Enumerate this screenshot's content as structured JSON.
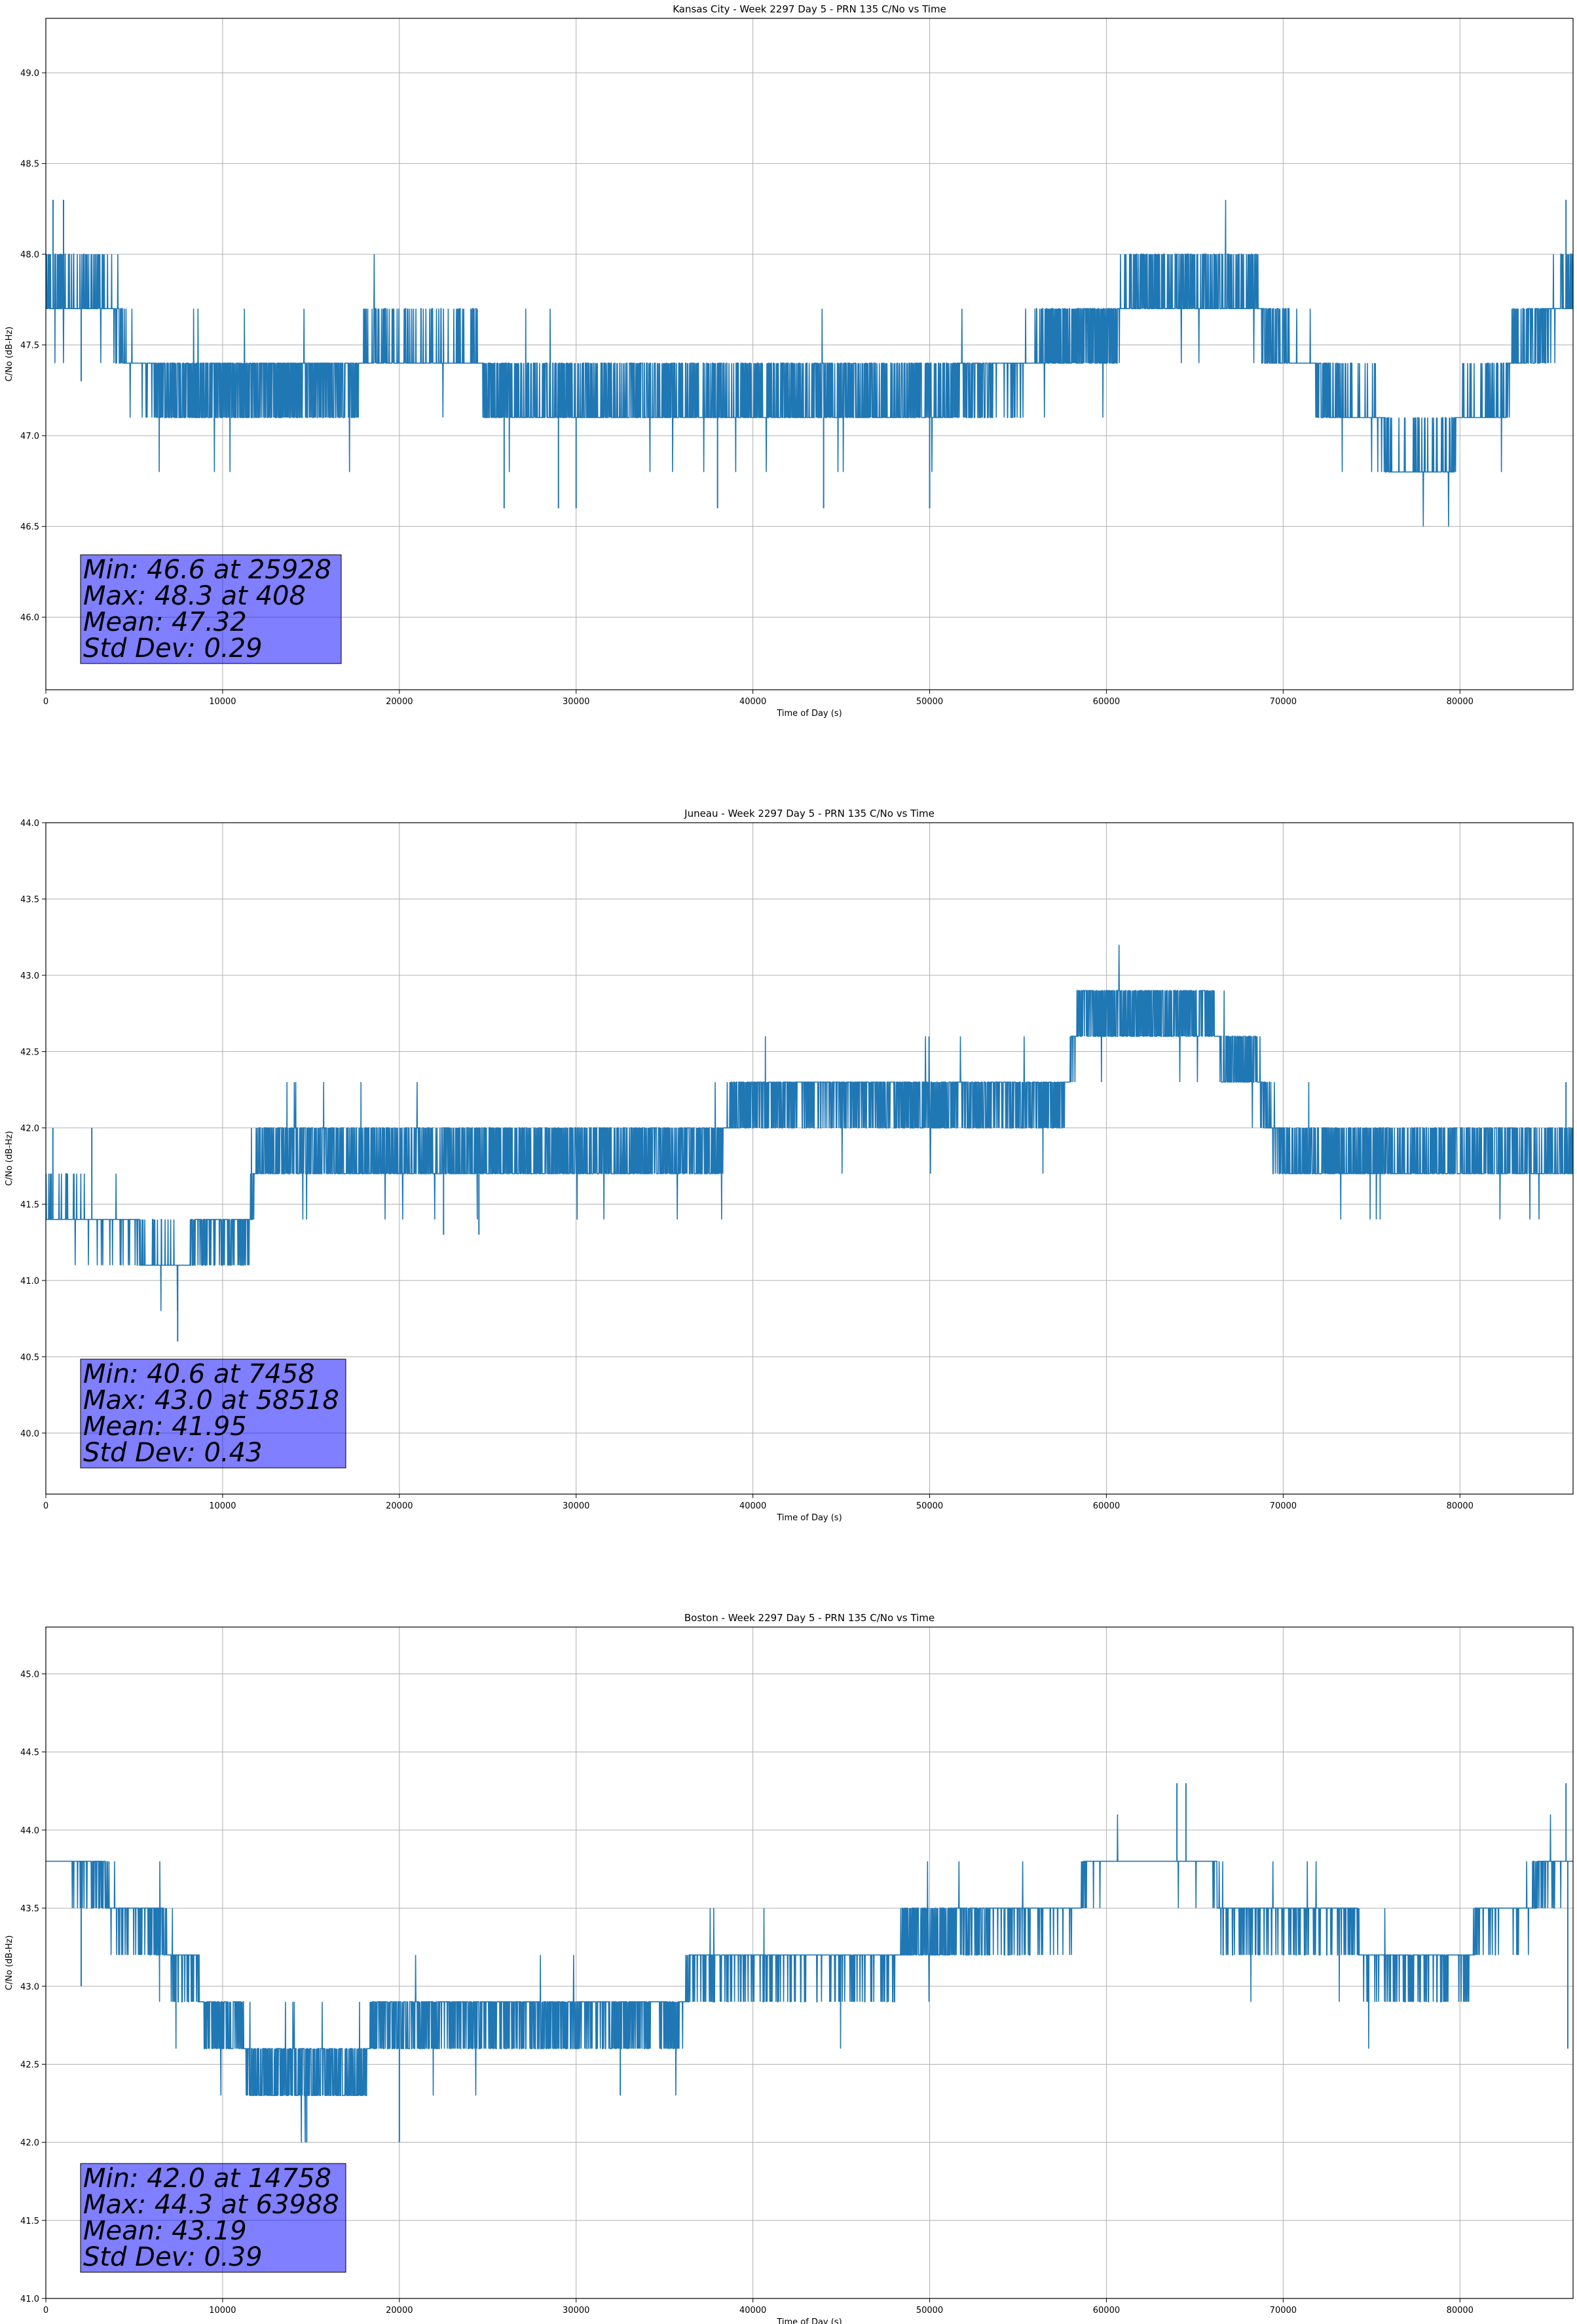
{
  "chart_data": [
    {
      "type": "line",
      "title": "Kansas City - Week 2297 Day 5 - PRN 135 C/No vs Time",
      "xlabel": "Time of Day (s)",
      "ylabel": "C/No (dB-Hz)",
      "xlim": [
        0,
        86400
      ],
      "ylim": [
        45.6,
        49.3
      ],
      "xticks": [
        0,
        10000,
        20000,
        30000,
        40000,
        50000,
        60000,
        70000,
        80000
      ],
      "yticks": [
        46.0,
        46.5,
        47.0,
        47.5,
        48.0,
        48.5,
        49.0
      ],
      "grid": true,
      "color": "#1f77b4",
      "quantum": 0.3,
      "trend": [
        [
          0,
          47.8
        ],
        [
          3500,
          47.75
        ],
        [
          4500,
          47.45
        ],
        [
          6500,
          47.25
        ],
        [
          17500,
          47.3
        ],
        [
          18000,
          47.45
        ],
        [
          24500,
          47.45
        ],
        [
          25000,
          47.2
        ],
        [
          50000,
          47.2
        ],
        [
          55000,
          47.35
        ],
        [
          56500,
          47.5
        ],
        [
          60500,
          47.55
        ],
        [
          61000,
          47.8
        ],
        [
          68500,
          47.8
        ],
        [
          69000,
          47.5
        ],
        [
          71500,
          47.4
        ],
        [
          72500,
          47.2
        ],
        [
          75500,
          47.1
        ],
        [
          76000,
          46.82
        ],
        [
          79500,
          46.85
        ],
        [
          80000,
          47.15
        ],
        [
          82500,
          47.15
        ],
        [
          83000,
          47.45
        ],
        [
          84500,
          47.6
        ],
        [
          86400,
          47.8
        ]
      ],
      "spikes": [
        [
          408,
          48.3
        ],
        [
          1000,
          48.3
        ],
        [
          2000,
          47.3
        ],
        [
          25928,
          46.6
        ],
        [
          29000,
          46.6
        ],
        [
          30000,
          46.6
        ],
        [
          38000,
          46.6
        ],
        [
          44000,
          46.6
        ],
        [
          50000,
          46.6
        ],
        [
          86000,
          48.3
        ]
      ],
      "stats": [
        "Min: 46.6 at 25928",
        "Max: 48.3 at 408",
        "Mean: 47.32",
        "Std Dev: 0.29"
      ]
    },
    {
      "type": "line",
      "title": "Juneau - Week 2297 Day 5 - PRN 135 C/No vs Time",
      "xlabel": "Time of Day (s)",
      "ylabel": "C/No (dB-Hz)",
      "xlim": [
        0,
        86400
      ],
      "ylim": [
        39.6,
        44.0
      ],
      "xticks": [
        0,
        10000,
        20000,
        30000,
        40000,
        50000,
        60000,
        70000,
        80000
      ],
      "yticks": [
        40.0,
        40.5,
        41.0,
        41.5,
        42.0,
        42.5,
        43.0,
        43.5,
        44.0
      ],
      "grid": true,
      "color": "#1f77b4",
      "quantum": 0.3,
      "trend": [
        [
          0,
          41.45
        ],
        [
          5000,
          41.35
        ],
        [
          5500,
          41.15
        ],
        [
          8000,
          41.1
        ],
        [
          8500,
          41.3
        ],
        [
          11500,
          41.35
        ],
        [
          12000,
          41.85
        ],
        [
          30000,
          41.8
        ],
        [
          38000,
          41.85
        ],
        [
          39000,
          42.15
        ],
        [
          42000,
          42.2
        ],
        [
          57500,
          42.15
        ],
        [
          58000,
          42.45
        ],
        [
          58500,
          42.75
        ],
        [
          66000,
          42.75
        ],
        [
          66500,
          42.45
        ],
        [
          68500,
          42.45
        ],
        [
          69000,
          42.1
        ],
        [
          70000,
          41.8
        ],
        [
          86400,
          41.8
        ]
      ],
      "spikes": [
        [
          400,
          42.0
        ],
        [
          2600,
          42.0
        ],
        [
          7458,
          40.6
        ],
        [
          22500,
          41.3
        ],
        [
          24500,
          41.3
        ],
        [
          86000,
          42.3
        ]
      ],
      "stats": [
        "Min: 40.6 at 7458",
        "Max: 43.0 at 58518",
        "Mean: 41.95",
        "Std Dev: 0.43"
      ]
    },
    {
      "type": "line",
      "title": "Boston - Week 2297 Day 5 - PRN 135 C/No vs Time",
      "xlabel": "Time of Day (s)",
      "ylabel": "C/No (dB-Hz)",
      "xlim": [
        0,
        86400
      ],
      "ylim": [
        41.0,
        45.3
      ],
      "xticks": [
        0,
        10000,
        20000,
        30000,
        40000,
        50000,
        60000,
        70000,
        80000
      ],
      "yticks": [
        41.0,
        41.5,
        42.0,
        42.5,
        43.0,
        43.5,
        44.0,
        44.5,
        45.0
      ],
      "grid": true,
      "color": "#1f77b4",
      "quantum": 0.3,
      "trend": [
        [
          0,
          43.8
        ],
        [
          3000,
          43.75
        ],
        [
          4000,
          43.45
        ],
        [
          6500,
          43.4
        ],
        [
          7000,
          43.15
        ],
        [
          8500,
          43.1
        ],
        [
          9000,
          42.8
        ],
        [
          11000,
          42.75
        ],
        [
          11500,
          42.45
        ],
        [
          18000,
          42.45
        ],
        [
          18500,
          42.8
        ],
        [
          36000,
          42.8
        ],
        [
          36500,
          43.15
        ],
        [
          48000,
          43.15
        ],
        [
          48500,
          43.3
        ],
        [
          56000,
          43.45
        ],
        [
          58500,
          43.5
        ],
        [
          59000,
          43.8
        ],
        [
          66000,
          43.8
        ],
        [
          66500,
          43.45
        ],
        [
          74000,
          43.45
        ],
        [
          74500,
          43.15
        ],
        [
          80500,
          43.15
        ],
        [
          81000,
          43.45
        ],
        [
          84000,
          43.5
        ],
        [
          84500,
          43.75
        ],
        [
          86400,
          43.8
        ]
      ],
      "spikes": [
        [
          2000,
          43.0
        ],
        [
          14758,
          42.0
        ],
        [
          20000,
          42.0
        ],
        [
          32500,
          42.3
        ],
        [
          63988,
          44.3
        ],
        [
          64500,
          44.3
        ],
        [
          86000,
          44.3
        ],
        [
          86100,
          42.6
        ]
      ],
      "stats": [
        "Min: 42.0 at 14758",
        "Max: 44.3 at 63988",
        "Mean: 43.19",
        "Std Dev: 0.39"
      ]
    }
  ]
}
